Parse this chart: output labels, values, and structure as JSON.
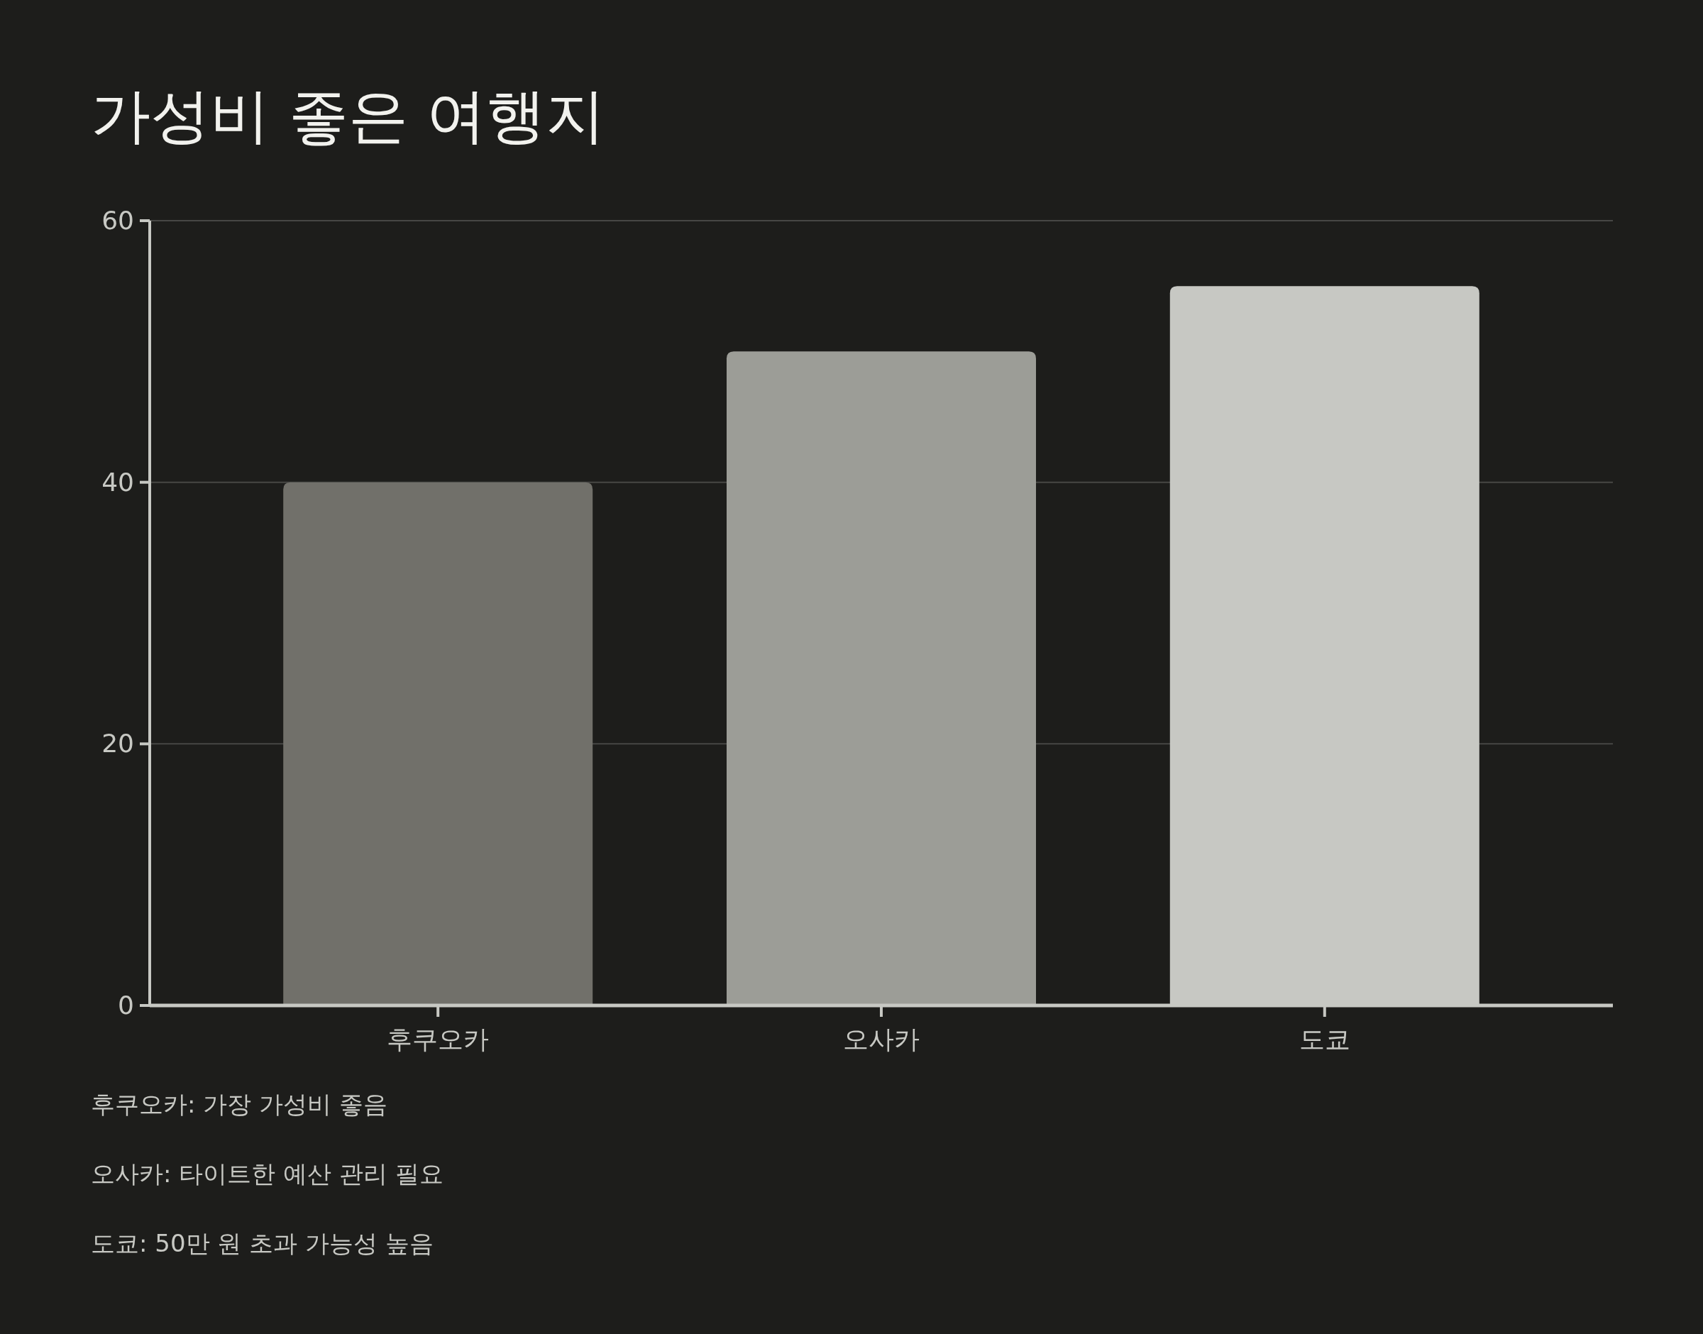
{
  "chart_data": {
    "type": "bar",
    "title": "가성비 좋은 여행지",
    "categories": [
      "후쿠오카",
      "오사카",
      "도쿄"
    ],
    "values": [
      40,
      50,
      55
    ],
    "colors": [
      "#71706a",
      "#9c9d97",
      "#c7c8c3"
    ],
    "ylim": [
      0,
      60
    ],
    "yticks": [
      0,
      20,
      40,
      60
    ],
    "grid": "y",
    "annotations": [
      "후쿠오카: 가장 가성비 좋음",
      "오사카: 타이트한 예산 관리 필요",
      "도쿄: 50만 원 초과 가능성 높음"
    ]
  }
}
